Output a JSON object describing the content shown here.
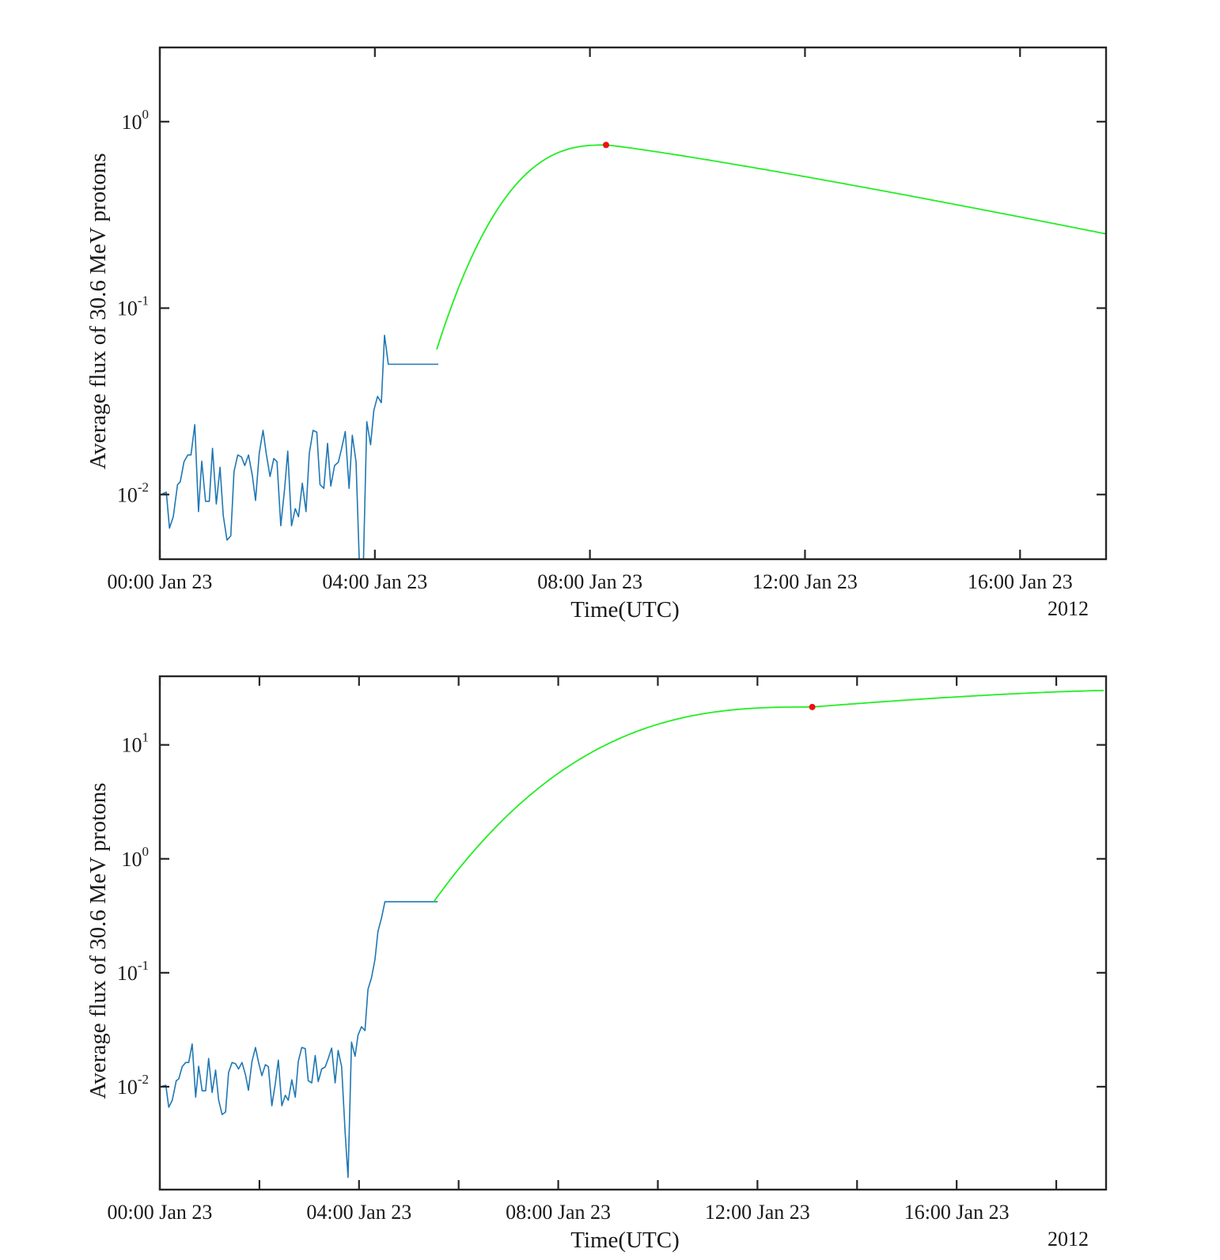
{
  "colors": {
    "observed": "#1f77b4",
    "fit": "#22ee22",
    "peak": "#ee1111",
    "axes": "#262626"
  },
  "chart_data": [
    {
      "type": "line",
      "yscale": "log",
      "xlabel": "Time(UTC)",
      "ylabel": "Average flux of 30.6 MeV protons",
      "year_label": "2012",
      "xlim_hours": [
        0,
        17.6
      ],
      "ylim": [
        0.0045,
        2.5
      ],
      "xticks": [
        {
          "hour": 0,
          "label": "00:00 Jan 23"
        },
        {
          "hour": 4,
          "label": "04:00 Jan 23"
        },
        {
          "hour": 8,
          "label": "08:00 Jan 23"
        },
        {
          "hour": 12,
          "label": "12:00 Jan 23"
        },
        {
          "hour": 16,
          "label": "16:00 Jan 23"
        }
      ],
      "yticks": [
        {
          "value": 1,
          "base": "10",
          "exp": "0"
        },
        {
          "value": 0.1,
          "base": "10",
          "exp": "-1"
        },
        {
          "value": 0.01,
          "base": "10",
          "exp": "-2"
        }
      ],
      "series": [
        {
          "role": "observed",
          "x": [
            0.05,
            0.12,
            0.18,
            0.25,
            0.33,
            0.38,
            0.45,
            0.52,
            0.58,
            0.65,
            0.72,
            0.78,
            0.85,
            0.92,
            0.98,
            1.05,
            1.12,
            1.18,
            1.25,
            1.32,
            1.38,
            1.45,
            1.52,
            1.58,
            1.65,
            1.72,
            1.78,
            1.85,
            1.92,
            1.98,
            2.05,
            2.12,
            2.18,
            2.25,
            2.32,
            2.38,
            2.45,
            2.52,
            2.58,
            2.65,
            2.72,
            2.78,
            2.85,
            2.92,
            2.98,
            3.05,
            3.12,
            3.18,
            3.25,
            3.32,
            3.38,
            3.45,
            3.52,
            3.58,
            3.65,
            3.72,
            3.78,
            3.85,
            3.92,
            3.98,
            4.05,
            4.12,
            4.18,
            4.25,
            4.32,
            4.38,
            4.45,
            4.52,
            4.58,
            4.62,
            4.66,
            4.72,
            4.78,
            4.85,
            4.92,
            4.98,
            5.05,
            5.12,
            5.18
          ],
          "y": [
            0.0101,
            0.0103,
            0.0066,
            0.0076,
            0.0113,
            0.0117,
            0.015,
            0.0163,
            0.0163,
            0.0237,
            0.0081,
            0.0151,
            0.0092,
            0.0092,
            0.0177,
            0.0089,
            0.014,
            0.0077,
            0.0057,
            0.006,
            0.0133,
            0.0163,
            0.0159,
            0.0143,
            0.0163,
            0.0127,
            0.0093,
            0.0167,
            0.0221,
            0.0166,
            0.0125,
            0.0156,
            0.015,
            0.0068,
            0.0107,
            0.0171,
            0.0068,
            0.0084,
            0.0076,
            0.0115,
            0.0081,
            0.0166,
            0.0221,
            0.0216,
            0.0113,
            0.0108,
            0.0188,
            0.0111,
            0.0143,
            0.0149,
            0.0176,
            0.0218,
            0.0108,
            0.0208,
            0.015,
            0.0036,
            0.0036,
            0.0246,
            0.0185,
            0.0283,
            0.0336,
            0.0311,
            0.0715,
            0.05,
            0.05,
            0.05,
            0.05,
            0.05,
            0.05,
            0.05,
            0.05,
            0.05,
            0.05,
            0.05,
            0.05,
            0.05,
            0.05,
            0.05,
            0.05
          ]
        },
        {
          "role": "fit",
          "model": {
            "t0_hours": 5.15,
            "peak_hour": 8.3,
            "peak_value": 0.75,
            "end_hour": 17.6,
            "end_value": 0.25,
            "start_value": 0.06
          }
        }
      ],
      "peak_marker": {
        "hour": 8.3,
        "value": 0.75
      }
    },
    {
      "type": "line",
      "yscale": "log",
      "xlabel": "Time(UTC)",
      "ylabel": "Average flux of 30.6 MeV protons",
      "year_label": "2012",
      "xlim_hours": [
        0,
        19.0
      ],
      "ylim": [
        0.00125,
        40
      ],
      "xticks": [
        {
          "hour": 0,
          "label": "00:00 Jan 23"
        },
        {
          "hour": 2,
          "label": ""
        },
        {
          "hour": 4,
          "label": "04:00 Jan 23"
        },
        {
          "hour": 6,
          "label": ""
        },
        {
          "hour": 8,
          "label": "08:00 Jan 23"
        },
        {
          "hour": 10,
          "label": ""
        },
        {
          "hour": 12,
          "label": "12:00 Jan 23"
        },
        {
          "hour": 14,
          "label": ""
        },
        {
          "hour": 16,
          "label": "16:00 Jan 23"
        },
        {
          "hour": 18,
          "label": ""
        }
      ],
      "yticks": [
        {
          "value": 10,
          "base": "10",
          "exp": "1"
        },
        {
          "value": 1,
          "base": "10",
          "exp": "0"
        },
        {
          "value": 0.1,
          "base": "10",
          "exp": "-1"
        },
        {
          "value": 0.01,
          "base": "10",
          "exp": "-2"
        }
      ],
      "series": [
        {
          "role": "observed",
          "x": [
            0.05,
            0.12,
            0.18,
            0.25,
            0.33,
            0.38,
            0.45,
            0.52,
            0.58,
            0.65,
            0.72,
            0.78,
            0.85,
            0.92,
            0.98,
            1.05,
            1.12,
            1.18,
            1.25,
            1.32,
            1.38,
            1.45,
            1.52,
            1.58,
            1.65,
            1.72,
            1.78,
            1.85,
            1.92,
            1.98,
            2.05,
            2.12,
            2.18,
            2.25,
            2.32,
            2.38,
            2.45,
            2.52,
            2.58,
            2.65,
            2.72,
            2.78,
            2.85,
            2.92,
            2.98,
            3.05,
            3.12,
            3.18,
            3.25,
            3.32,
            3.38,
            3.45,
            3.52,
            3.58,
            3.65,
            3.72,
            3.78,
            3.85,
            3.92,
            3.98,
            4.05,
            4.12,
            4.18,
            4.25,
            4.32,
            4.38,
            4.45,
            4.52,
            4.58,
            4.65,
            4.72,
            4.78,
            4.85,
            4.92,
            4.98,
            5.05,
            5.12,
            5.18,
            5.25,
            5.32,
            5.38,
            5.45,
            5.52,
            5.58
          ],
          "y": [
            0.0101,
            0.0103,
            0.0066,
            0.0076,
            0.0113,
            0.0117,
            0.015,
            0.0163,
            0.0163,
            0.0237,
            0.0081,
            0.0151,
            0.0092,
            0.0092,
            0.0177,
            0.0089,
            0.014,
            0.0077,
            0.0057,
            0.006,
            0.0133,
            0.0163,
            0.0159,
            0.0143,
            0.0163,
            0.0127,
            0.0093,
            0.0167,
            0.0221,
            0.0166,
            0.0125,
            0.0156,
            0.015,
            0.0068,
            0.0107,
            0.0171,
            0.0068,
            0.0084,
            0.0076,
            0.0115,
            0.0081,
            0.0166,
            0.0221,
            0.0216,
            0.0113,
            0.0108,
            0.0188,
            0.0111,
            0.0143,
            0.0149,
            0.0176,
            0.0218,
            0.0108,
            0.0208,
            0.015,
            0.004,
            0.0016,
            0.0246,
            0.0185,
            0.0283,
            0.0336,
            0.0311,
            0.0715,
            0.09,
            0.13,
            0.23,
            0.3,
            0.42,
            0.42,
            0.42,
            0.42,
            0.42,
            0.42,
            0.42,
            0.42,
            0.42,
            0.42,
            0.42,
            0.42,
            0.42,
            0.42,
            0.42,
            0.42,
            0.42
          ]
        },
        {
          "role": "fit",
          "model": {
            "t0_hours": 5.5,
            "start_value": 0.42,
            "mark_hour": 13.1,
            "mark_value": 21.5,
            "end_hour": 19.0,
            "end_value": 30.0
          }
        }
      ],
      "peak_marker": {
        "hour": 13.1,
        "value": 21.5
      }
    }
  ]
}
